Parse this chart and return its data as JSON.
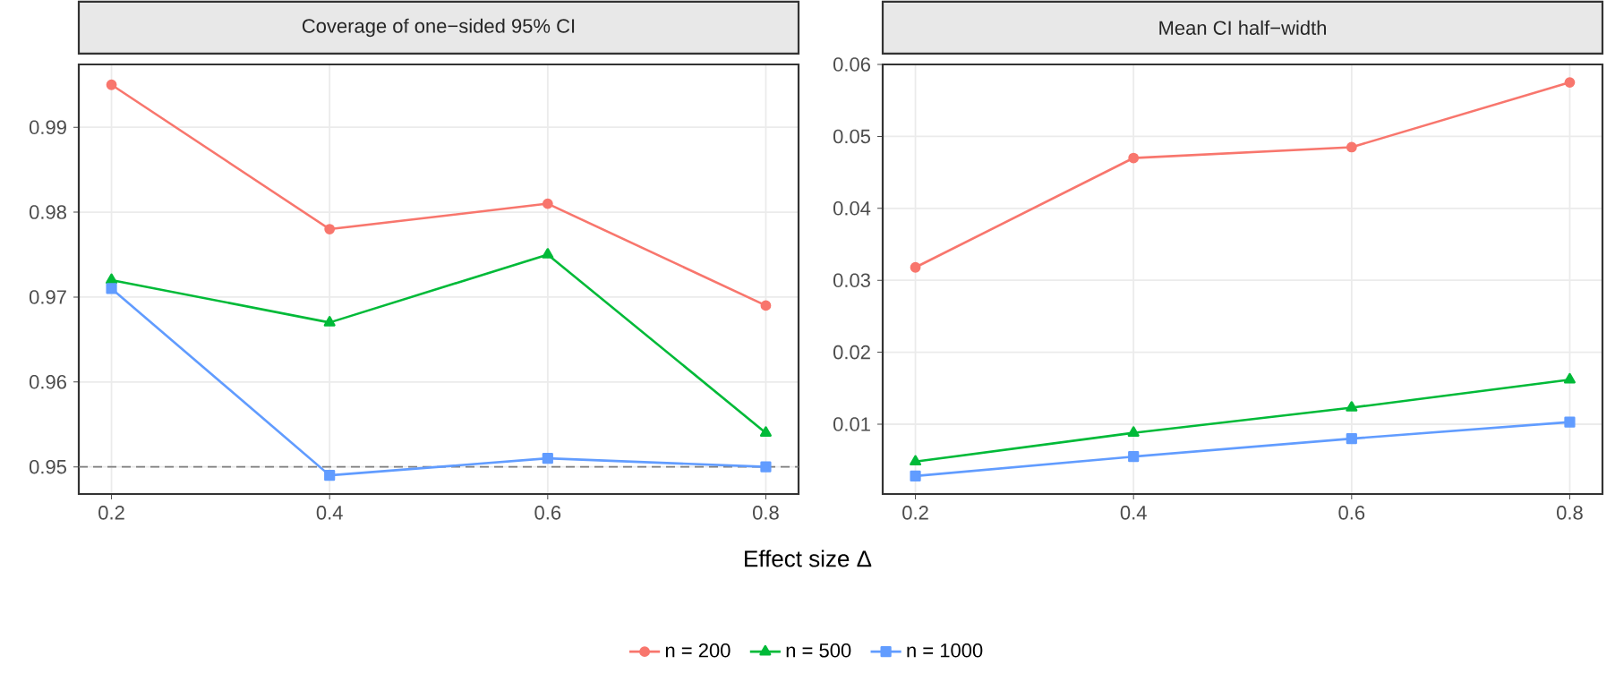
{
  "chart_data": [
    {
      "type": "line",
      "title": "Coverage of one−sided 95% CI",
      "xlabel": "Effect size Δ",
      "x": [
        0.2,
        0.4,
        0.6,
        0.8
      ],
      "xlim": [
        0.17,
        0.83
      ],
      "xticks": [
        0.2,
        0.4,
        0.6,
        0.8
      ],
      "ylim": [
        0.9468,
        0.9974
      ],
      "yticks": [
        0.95,
        0.96,
        0.97,
        0.98,
        0.99
      ],
      "grid": true,
      "legend": "bottom",
      "line_style": "solid",
      "series": [
        {
          "name": "n = 200",
          "color": "#f8766d",
          "marker": "circle",
          "values": [
            0.995,
            0.978,
            0.981,
            0.969
          ]
        },
        {
          "name": "n = 500",
          "color": "#00ba38",
          "marker": "triangle",
          "values": [
            0.972,
            0.967,
            0.975,
            0.954
          ]
        },
        {
          "name": "n = 1000",
          "color": "#619cff",
          "marker": "square",
          "values": [
            0.971,
            0.949,
            0.951,
            0.95
          ]
        }
      ],
      "ref_lines": [
        {
          "axis": "y",
          "value": 0.95,
          "color": "#7f7f7f",
          "line_style": "dashed"
        }
      ]
    },
    {
      "type": "line",
      "title": "Mean CI half−width",
      "x": [
        0.2,
        0.4,
        0.6,
        0.8
      ],
      "xlim": [
        0.17,
        0.83
      ],
      "xticks": [
        0.2,
        0.4,
        0.6,
        0.8
      ],
      "ylim": [
        0.0003,
        0.06
      ],
      "yticks": [
        0.01,
        0.02,
        0.03,
        0.04,
        0.05,
        0.06
      ],
      "grid": true,
      "line_style": "solid",
      "series": [
        {
          "color": "#f8766d",
          "marker": "circle",
          "values": [
            0.0318,
            0.047,
            0.0485,
            0.0575
          ]
        },
        {
          "color": "#00ba38",
          "marker": "triangle",
          "values": [
            0.0048,
            0.0088,
            0.0123,
            0.0162
          ]
        },
        {
          "color": "#619cff",
          "marker": "square",
          "values": [
            0.0028,
            0.0055,
            0.008,
            0.0103
          ]
        }
      ]
    }
  ]
}
